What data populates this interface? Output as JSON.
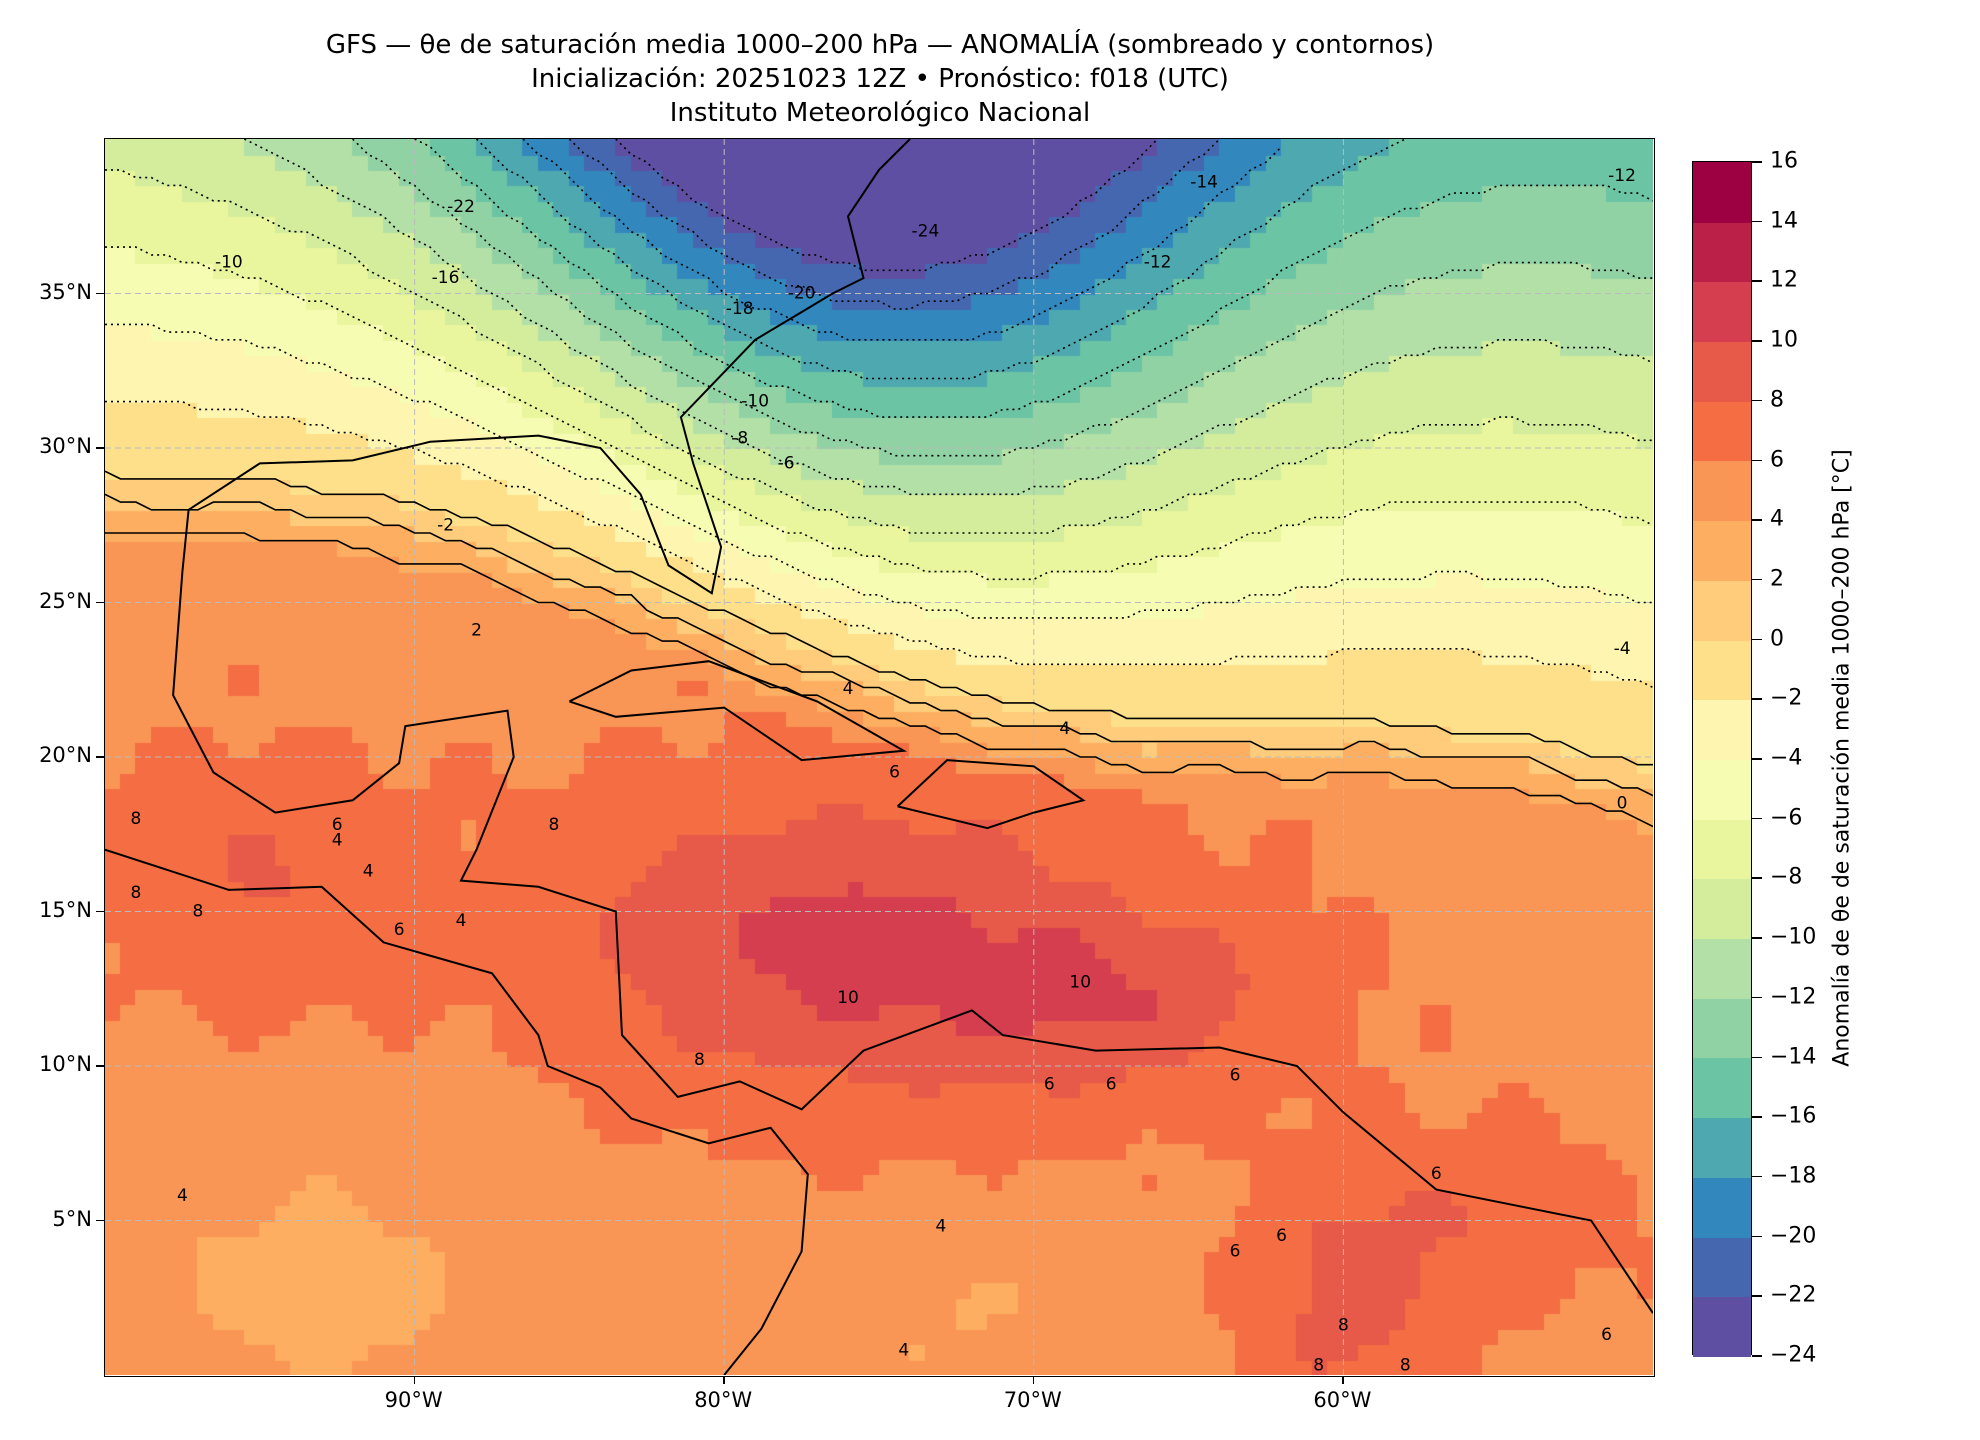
{
  "title": {
    "line1": "GFS — θe de saturación media 1000–200 hPa — ANOMALÍA (sombreado y contornos)",
    "line2": "Inicialización: 20251023 12Z   •   Pronóstico: f018 (UTC)",
    "line3": "Instituto Meteorológico Nacional"
  },
  "map": {
    "lon_range": [
      -100,
      -50
    ],
    "lat_range": [
      0,
      40
    ],
    "lat_ticks": [
      {
        "value": 5,
        "label": "5°N"
      },
      {
        "value": 10,
        "label": "10°N"
      },
      {
        "value": 15,
        "label": "15°N"
      },
      {
        "value": 20,
        "label": "20°N"
      },
      {
        "value": 25,
        "label": "25°N"
      },
      {
        "value": 30,
        "label": "30°N"
      },
      {
        "value": 35,
        "label": "35°N"
      }
    ],
    "lon_ticks": [
      {
        "value": -90,
        "label": "90°W"
      },
      {
        "value": -80,
        "label": "80°W"
      },
      {
        "value": -70,
        "label": "70°W"
      },
      {
        "value": -60,
        "label": "60°W"
      }
    ],
    "contour_labels": [
      {
        "text": "-22",
        "lon": -88.5,
        "lat": 37.8
      },
      {
        "text": "-16",
        "lon": -89,
        "lat": 35.5
      },
      {
        "text": "-10",
        "lon": -96,
        "lat": 36
      },
      {
        "text": "-18",
        "lon": -79.5,
        "lat": 34.5
      },
      {
        "text": "-20",
        "lon": -77.5,
        "lat": 35
      },
      {
        "text": "-24",
        "lon": -73.5,
        "lat": 37
      },
      {
        "text": "-14",
        "lon": -64.5,
        "lat": 38.6
      },
      {
        "text": "-12",
        "lon": -66,
        "lat": 36
      },
      {
        "text": "-12",
        "lon": -51,
        "lat": 38.8
      },
      {
        "text": "-10",
        "lon": -79,
        "lat": 31.5
      },
      {
        "text": "-8",
        "lon": -79.5,
        "lat": 30.3
      },
      {
        "text": "-6",
        "lon": -78,
        "lat": 29.5
      },
      {
        "text": "-2",
        "lon": -89,
        "lat": 27.5
      },
      {
        "text": "2",
        "lon": -88,
        "lat": 24.1
      },
      {
        "text": "-4",
        "lon": -51,
        "lat": 23.5
      },
      {
        "text": "0",
        "lon": -51,
        "lat": 18.5
      },
      {
        "text": "4",
        "lon": -76,
        "lat": 22.2
      },
      {
        "text": "4",
        "lon": -69,
        "lat": 20.9
      },
      {
        "text": "6",
        "lon": -74.5,
        "lat": 19.5
      },
      {
        "text": "8",
        "lon": -85.5,
        "lat": 17.8
      },
      {
        "text": "6",
        "lon": -92.5,
        "lat": 17.8
      },
      {
        "text": "4",
        "lon": -92.5,
        "lat": 17.3
      },
      {
        "text": "4",
        "lon": -91.5,
        "lat": 16.3
      },
      {
        "text": "4",
        "lon": -88.5,
        "lat": 14.7
      },
      {
        "text": "6",
        "lon": -90.5,
        "lat": 14.4
      },
      {
        "text": "8",
        "lon": -99,
        "lat": 18
      },
      {
        "text": "8",
        "lon": -99,
        "lat": 15.6
      },
      {
        "text": "8",
        "lon": -97,
        "lat": 15
      },
      {
        "text": "10",
        "lon": -76,
        "lat": 12.2
      },
      {
        "text": "10",
        "lon": -68.5,
        "lat": 12.7
      },
      {
        "text": "8",
        "lon": -80.8,
        "lat": 10.2
      },
      {
        "text": "6",
        "lon": -69.5,
        "lat": 9.4
      },
      {
        "text": "6",
        "lon": -67.5,
        "lat": 9.4
      },
      {
        "text": "6",
        "lon": -63.5,
        "lat": 9.7
      },
      {
        "text": "4",
        "lon": -97.5,
        "lat": 5.8
      },
      {
        "text": "4",
        "lon": -73,
        "lat": 4.8
      },
      {
        "text": "4",
        "lon": -74.2,
        "lat": 0.8
      },
      {
        "text": "6",
        "lon": -63.5,
        "lat": 4
      },
      {
        "text": "6",
        "lon": -62,
        "lat": 4.5
      },
      {
        "text": "8",
        "lon": -60,
        "lat": 1.6
      },
      {
        "text": "8",
        "lon": -60.8,
        "lat": 0.3
      },
      {
        "text": "8",
        "lon": -58,
        "lat": 0.3
      },
      {
        "text": "6",
        "lon": -51.5,
        "lat": 1.3
      },
      {
        "text": "6",
        "lon": -57,
        "lat": 6.5
      }
    ]
  },
  "colorbar": {
    "label": "Anomalía de θe de saturación media 1000–200 hPa [°C]",
    "levels": [
      -24,
      -22,
      -20,
      -18,
      -16,
      -14,
      -12,
      -10,
      -8,
      -6,
      -4,
      -2,
      0,
      2,
      4,
      6,
      8,
      10,
      12,
      14,
      16
    ],
    "tick_labels": [
      "−24",
      "−22",
      "−20",
      "−18",
      "−16",
      "−14",
      "−12",
      "−10",
      "−8",
      "−6",
      "−4",
      "−2",
      "0",
      "2",
      "4",
      "6",
      "8",
      "10",
      "12",
      "14",
      "16"
    ],
    "colors": [
      "#5e4fa2",
      "#4467b0",
      "#3288bd",
      "#4ea8b0",
      "#6bc4a4",
      "#91d2a4",
      "#b3e0a6",
      "#d3ed9c",
      "#e9f69d",
      "#f7fcb3",
      "#fef6b0",
      "#fee08b",
      "#fecc7b",
      "#fdae61",
      "#f99555",
      "#f46d43",
      "#e75948",
      "#d53e4f",
      "#bb2048",
      "#9e0142"
    ]
  }
}
